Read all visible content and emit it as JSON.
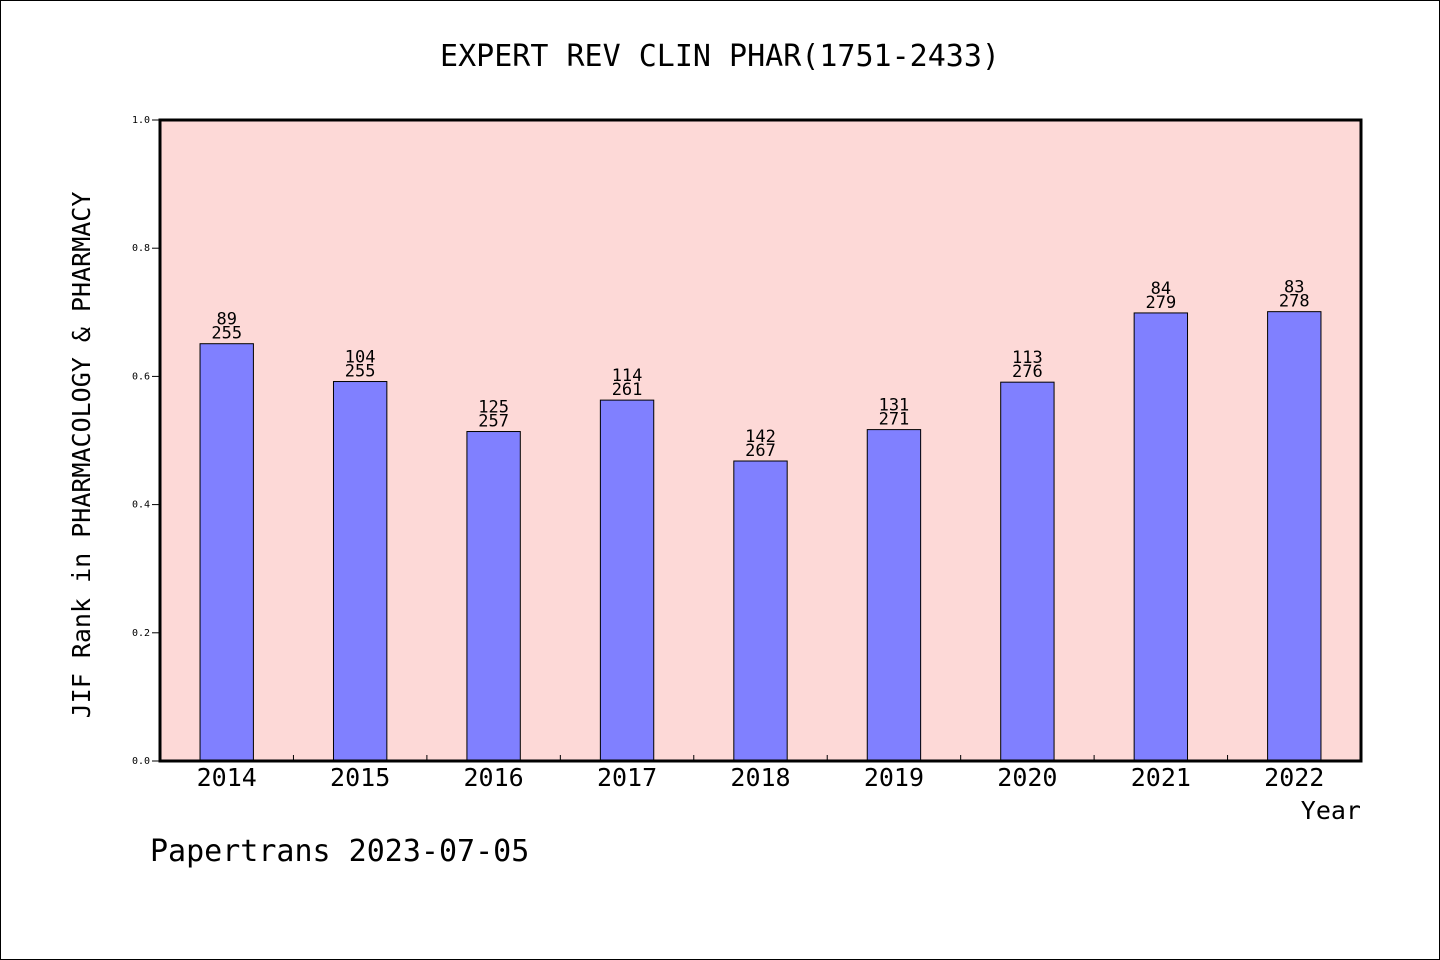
{
  "chart_data": {
    "type": "bar",
    "title": "EXPERT REV CLIN PHAR(1751-2433)",
    "ylabel": "JIF Rank in PHARMACOLOGY & PHARMACY",
    "xlabel": "Year",
    "ylim": [
      0.0,
      1.0
    ],
    "yticks": [
      "0.0",
      "0.2",
      "0.4",
      "0.6",
      "0.8",
      "1.0"
    ],
    "categories": [
      "2014",
      "2015",
      "2016",
      "2017",
      "2018",
      "2019",
      "2020",
      "2021",
      "2022"
    ],
    "values": [
      0.651,
      0.592,
      0.514,
      0.563,
      0.468,
      0.517,
      0.591,
      0.699,
      0.701
    ],
    "labels": [
      {
        "rank": "89",
        "total": "255"
      },
      {
        "rank": "104",
        "total": "255"
      },
      {
        "rank": "125",
        "total": "257"
      },
      {
        "rank": "114",
        "total": "261"
      },
      {
        "rank": "142",
        "total": "267"
      },
      {
        "rank": "131",
        "total": "271"
      },
      {
        "rank": "113",
        "total": "276"
      },
      {
        "rank": "84",
        "total": "279"
      },
      {
        "rank": "83",
        "total": "278"
      }
    ],
    "grid": false,
    "colors": {
      "plot_background": "#fdd9d7",
      "bar": "#8080ff",
      "axis": "#000000"
    }
  },
  "footer": "Papertrans 2023-07-05"
}
